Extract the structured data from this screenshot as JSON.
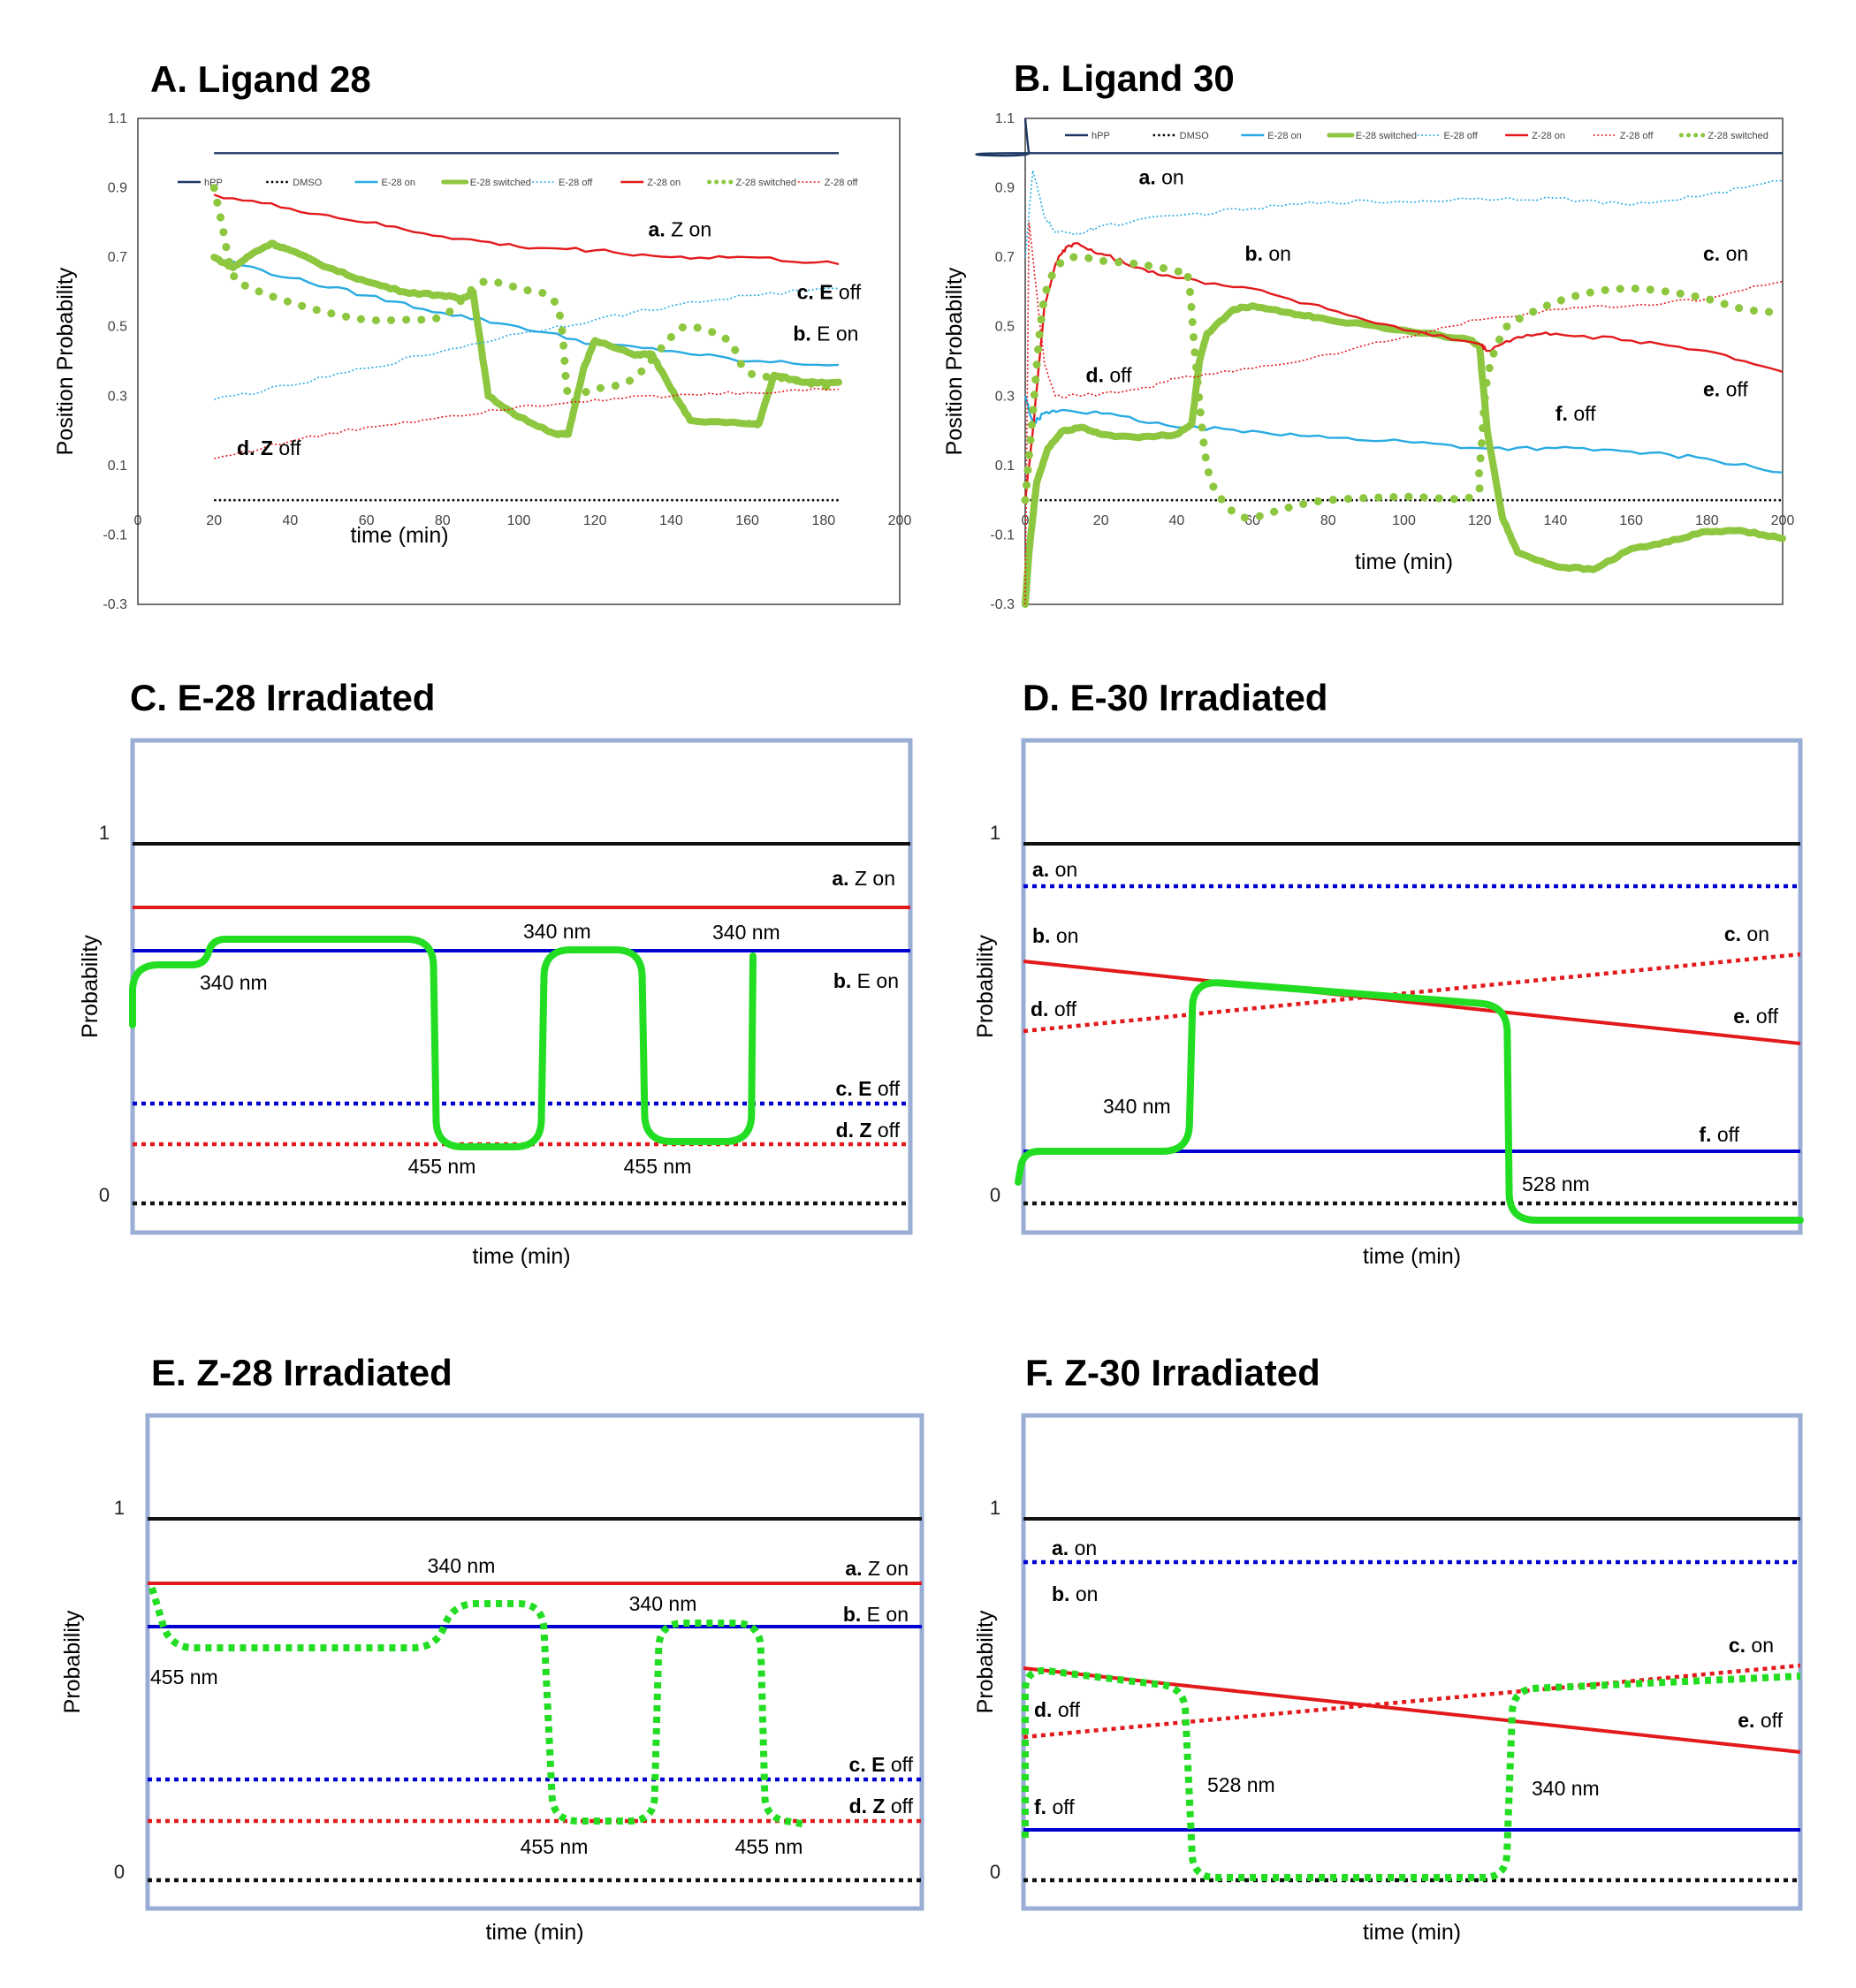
{
  "chart_data": [
    {
      "panel": "A",
      "type": "line",
      "title": "A. Ligand 28",
      "xlabel": "time (min)",
      "ylabel": "Position Probability",
      "xlim": [
        0,
        200
      ],
      "ylim": [
        -0.3,
        1.1
      ],
      "xticks": [
        0,
        20,
        40,
        60,
        80,
        100,
        120,
        140,
        160,
        180,
        200
      ],
      "yticks": [
        "-0.3",
        "-0.1",
        "0.1",
        "0.3",
        "0.5",
        "0.7",
        "0.9",
        "1.1"
      ],
      "legend": [
        "hPP",
        "DMSO",
        "E-28 on",
        "E-28 switched",
        "E-28 off",
        "Z-28 on",
        "Z-28 switched",
        "Z-28 off"
      ],
      "legend_position": "top",
      "series": [
        {
          "name": "hPP",
          "color": "#1f3864",
          "style": "solid",
          "x": [
            20,
            184
          ],
          "y": [
            1.0,
            1.0
          ]
        },
        {
          "name": "DMSO",
          "color": "#000000",
          "style": "dotted",
          "x": [
            20,
            184
          ],
          "y": [
            0.0,
            0.0
          ]
        },
        {
          "name": "E-28 on",
          "color": "#29abe2",
          "style": "solid",
          "x": [
            20,
            40,
            60,
            80,
            100,
            120,
            140,
            160,
            184
          ],
          "y": [
            0.7,
            0.64,
            0.59,
            0.54,
            0.5,
            0.45,
            0.43,
            0.4,
            0.39
          ]
        },
        {
          "name": "E-28 switched",
          "color": "#8dc63f",
          "style": "thick",
          "x": [
            20,
            25,
            30,
            35,
            40,
            50,
            60,
            70,
            80,
            85,
            88,
            92,
            100,
            110,
            113,
            117,
            120,
            130,
            135,
            140,
            145,
            160,
            163,
            167,
            175,
            184
          ],
          "y": [
            0.7,
            0.67,
            0.71,
            0.74,
            0.72,
            0.67,
            0.63,
            0.6,
            0.59,
            0.58,
            0.6,
            0.3,
            0.24,
            0.19,
            0.19,
            0.38,
            0.46,
            0.42,
            0.42,
            0.32,
            0.23,
            0.22,
            0.22,
            0.36,
            0.34,
            0.34
          ]
        },
        {
          "name": "E-28 off",
          "color": "#29abe2",
          "style": "dotted-thin",
          "x": [
            20,
            40,
            60,
            80,
            100,
            120,
            140,
            160,
            184
          ],
          "y": [
            0.29,
            0.33,
            0.38,
            0.43,
            0.48,
            0.52,
            0.56,
            0.59,
            0.61
          ]
        },
        {
          "name": "Z-28 on",
          "color": "#e31a1c",
          "style": "solid",
          "x": [
            20,
            40,
            60,
            80,
            100,
            120,
            140,
            160,
            184
          ],
          "y": [
            0.88,
            0.84,
            0.8,
            0.76,
            0.73,
            0.72,
            0.7,
            0.7,
            0.68
          ]
        },
        {
          "name": "Z-28 switched",
          "color": "#8dc63f",
          "style": "dots",
          "x": [
            20,
            22,
            25,
            30,
            40,
            50,
            60,
            70,
            80,
            88,
            92,
            100,
            110,
            113,
            117,
            120,
            130,
            140,
            145,
            155,
            160,
            170,
            184
          ],
          "y": [
            0.9,
            0.8,
            0.65,
            0.61,
            0.57,
            0.54,
            0.52,
            0.52,
            0.53,
            0.61,
            0.63,
            0.61,
            0.56,
            0.3,
            0.31,
            0.32,
            0.35,
            0.47,
            0.5,
            0.46,
            0.37,
            0.35,
            0.32
          ]
        },
        {
          "name": "Z-28 off",
          "color": "#e31a1c",
          "style": "dotted-thin",
          "x": [
            20,
            40,
            60,
            80,
            100,
            120,
            140,
            160,
            184
          ],
          "y": [
            0.12,
            0.17,
            0.21,
            0.24,
            0.27,
            0.29,
            0.3,
            0.31,
            0.32
          ]
        }
      ],
      "annotations": [
        {
          "bold": "a.",
          "text": " Z on",
          "x": 134,
          "y": 0.76
        },
        {
          "bold": "c. E",
          "text": " off",
          "x": 173,
          "y": 0.58
        },
        {
          "bold": "b.",
          "text": " E on",
          "x": 172,
          "y": 0.46
        },
        {
          "bold": "d. Z",
          "text": " off",
          "x": 26,
          "y": 0.13
        }
      ]
    },
    {
      "panel": "B",
      "type": "line",
      "title": "B. Ligand 30",
      "xlabel": "time (min)",
      "ylabel": "Position Probability",
      "xlim": [
        0,
        200
      ],
      "ylim": [
        -0.3,
        1.1
      ],
      "xticks": [
        0,
        20,
        40,
        60,
        80,
        100,
        120,
        140,
        160,
        180,
        200
      ],
      "yticks": [
        "-0.3",
        "-0.1",
        "0.1",
        "0.3",
        "0.5",
        "0.7",
        "0.9",
        "1.1"
      ],
      "legend": [
        "hPP",
        "DMSO",
        "E-28 on",
        "E-28 switched",
        "E-28 off",
        "Z-28 on",
        "Z-28 off",
        "Z-28 switched"
      ],
      "legend_position": "top",
      "series": [
        {
          "name": "hPP",
          "color": "#1f3864",
          "style": "solid",
          "x": [
            0,
            1,
            2,
            200
          ],
          "y": [
            1.1,
            1.0,
            1.0,
            1.0
          ]
        },
        {
          "name": "DMSO",
          "color": "#000000",
          "style": "dotted",
          "x": [
            0,
            200
          ],
          "y": [
            0.0,
            0.0
          ]
        },
        {
          "name": "E-28 on",
          "color": "#29abe2",
          "style": "solid",
          "x": [
            0,
            2,
            5,
            10,
            20,
            40,
            60,
            80,
            100,
            120,
            140,
            160,
            180,
            200
          ],
          "y": [
            0.3,
            0.22,
            0.25,
            0.26,
            0.25,
            0.21,
            0.2,
            0.18,
            0.17,
            0.15,
            0.15,
            0.14,
            0.12,
            0.08
          ]
        },
        {
          "name": "E-28 switched",
          "color": "#8dc63f",
          "style": "thick",
          "x": [
            0,
            1,
            3,
            6,
            10,
            15,
            20,
            30,
            40,
            44,
            46,
            48,
            55,
            60,
            70,
            80,
            100,
            118,
            120,
            122,
            126,
            130,
            140,
            150,
            160,
            170,
            180,
            190,
            200
          ],
          "y": [
            -0.3,
            -0.15,
            0.05,
            0.15,
            0.2,
            0.21,
            0.19,
            0.18,
            0.19,
            0.22,
            0.4,
            0.48,
            0.55,
            0.56,
            0.54,
            0.52,
            0.49,
            0.46,
            0.44,
            0.2,
            -0.05,
            -0.15,
            -0.19,
            -0.2,
            -0.14,
            -0.12,
            -0.09,
            -0.09,
            -0.11
          ]
        },
        {
          "name": "E-28 off",
          "color": "#29abe2",
          "style": "dotted-thin",
          "x": [
            0,
            2,
            5,
            8,
            15,
            20,
            40,
            60,
            80,
            100,
            120,
            140,
            160,
            180,
            200
          ],
          "y": [
            0.7,
            0.95,
            0.82,
            0.77,
            0.77,
            0.79,
            0.82,
            0.84,
            0.86,
            0.86,
            0.87,
            0.87,
            0.85,
            0.88,
            0.92
          ]
        },
        {
          "name": "Z-28 on",
          "color": "#e31a1c",
          "style": "solid",
          "x": [
            0,
            2,
            5,
            8,
            10,
            13,
            20,
            30,
            40,
            60,
            80,
            100,
            120,
            122,
            130,
            140,
            160,
            180,
            200
          ],
          "y": [
            0.0,
            0.2,
            0.55,
            0.68,
            0.72,
            0.74,
            0.71,
            0.67,
            0.64,
            0.61,
            0.55,
            0.49,
            0.45,
            0.43,
            0.47,
            0.48,
            0.46,
            0.43,
            0.37
          ]
        },
        {
          "name": "Z-28 off",
          "color": "#e31a1c",
          "style": "dotted-thin",
          "x": [
            0,
            1,
            3,
            5,
            8,
            15,
            30,
            40,
            60,
            80,
            100,
            120,
            140,
            160,
            180,
            200
          ],
          "y": [
            -0.3,
            0.8,
            0.6,
            0.4,
            0.3,
            0.3,
            0.32,
            0.35,
            0.38,
            0.42,
            0.47,
            0.52,
            0.55,
            0.56,
            0.58,
            0.63
          ]
        },
        {
          "name": "Z-28 switched",
          "color": "#8dc63f",
          "style": "dots",
          "x": [
            0,
            2,
            4,
            6,
            10,
            15,
            20,
            30,
            40,
            43,
            45,
            48,
            52,
            56,
            60,
            70,
            80,
            100,
            118,
            120,
            122,
            126,
            130,
            140,
            150,
            160,
            170,
            180,
            190,
            200
          ],
          "y": [
            0.0,
            0.25,
            0.5,
            0.62,
            0.69,
            0.7,
            0.69,
            0.68,
            0.66,
            0.64,
            0.4,
            0.1,
            0.0,
            -0.04,
            -0.05,
            -0.02,
            0.0,
            0.01,
            0.01,
            0.1,
            0.35,
            0.48,
            0.52,
            0.57,
            0.6,
            0.61,
            0.6,
            0.58,
            0.55,
            0.54
          ]
        }
      ],
      "annotations": [
        {
          "bold": "a.",
          "text": " on",
          "x": 30,
          "y": 0.91
        },
        {
          "bold": "b.",
          "text": " on",
          "x": 58,
          "y": 0.69
        },
        {
          "bold": "c.",
          "text": " on",
          "x": 179,
          "y": 0.69
        },
        {
          "bold": "d.",
          "text": " off",
          "x": 16,
          "y": 0.34
        },
        {
          "bold": "e.",
          "text": " off",
          "x": 179,
          "y": 0.3
        },
        {
          "bold": "f.",
          "text": " off",
          "x": 140,
          "y": 0.23
        }
      ]
    },
    {
      "panel": "C",
      "type": "line",
      "title": "C. E-28 Irradiated",
      "xlabel": "time (min)",
      "ylabel": "Probability",
      "ylim": [
        0,
        1
      ],
      "yticks": [
        "0",
        "1"
      ],
      "labels": [
        {
          "bold": "a.",
          "text": " Z on"
        },
        {
          "bold": "b.",
          "text": " E on"
        },
        {
          "bold": "c. E",
          "text": " off"
        },
        {
          "bold": "d. Z",
          "text": " off"
        }
      ],
      "wavelengths": [
        "340 nm",
        "340 nm",
        "340 nm",
        "455 nm",
        "455 nm"
      ]
    },
    {
      "panel": "D",
      "type": "line",
      "title": "D. E-30 Irradiated",
      "xlabel": "time (min)",
      "ylabel": "Probability",
      "ylim": [
        0,
        1
      ],
      "yticks": [
        "0",
        "1"
      ],
      "labels": [
        {
          "bold": "a.",
          "text": " on"
        },
        {
          "bold": "b.",
          "text": " on"
        },
        {
          "bold": "c.",
          "text": " on"
        },
        {
          "bold": "d.",
          "text": " off"
        },
        {
          "bold": "e.",
          "text": " off"
        },
        {
          "bold": "f.",
          "text": " off"
        }
      ],
      "wavelengths": [
        "340 nm",
        "528 nm"
      ]
    },
    {
      "panel": "E",
      "type": "line",
      "title": "E. Z-28 Irradiated",
      "xlabel": "time (min)",
      "ylabel": "Probability",
      "ylim": [
        0,
        1
      ],
      "yticks": [
        "0",
        "1"
      ],
      "labels": [
        {
          "bold": "a.",
          "text": " Z on"
        },
        {
          "bold": "b.",
          "text": " E on"
        },
        {
          "bold": "c. E",
          "text": " off"
        },
        {
          "bold": "d. Z",
          "text": " off"
        }
      ],
      "wavelengths": [
        "340 nm",
        "340 nm",
        "455 nm",
        "455 nm",
        "455 nm"
      ]
    },
    {
      "panel": "F",
      "type": "line",
      "title": "F. Z-30 Irradiated",
      "xlabel": "time (min)",
      "ylabel": "Probability",
      "ylim": [
        0,
        1
      ],
      "yticks": [
        "0",
        "1"
      ],
      "labels": [
        {
          "bold": "a.",
          "text": " on"
        },
        {
          "bold": "b.",
          "text": " on"
        },
        {
          "bold": "c.",
          "text": " on"
        },
        {
          "bold": "d.",
          "text": " off"
        },
        {
          "bold": "e.",
          "text": " off"
        },
        {
          "bold": "f.",
          "text": " off"
        }
      ],
      "wavelengths": [
        "528 nm",
        "340 nm"
      ]
    }
  ],
  "colors": {
    "hpp": "#1f3864",
    "red": "#e31a1c",
    "blue": "#0000d0",
    "light_blue": "#29abe2",
    "green_data": "#8dc63f",
    "green_schematic": "#22dd22",
    "frame": "#9aadd4"
  }
}
